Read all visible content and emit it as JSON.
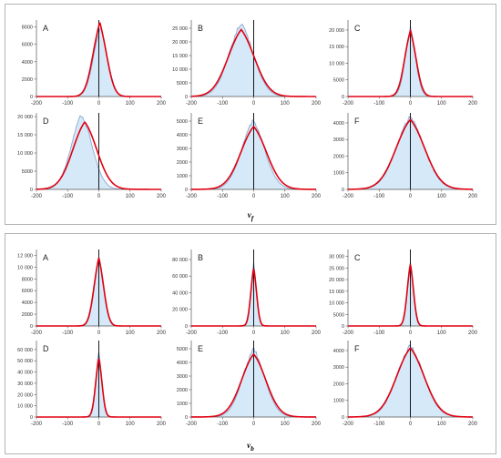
{
  "figure": {
    "colors": {
      "fit": "#e00010",
      "hist_fill": "#d5e9f8",
      "hist_line": "#8fa9d0",
      "axis": "#555555",
      "zero_line": "#000000"
    },
    "groups": [
      {
        "caption_main": "v",
        "caption_sub": "f"
      },
      {
        "caption_main": "v",
        "caption_sub": "b"
      }
    ]
  },
  "chart_data": [
    {
      "type": "area",
      "panel": "A",
      "group": "v_f",
      "xlim": [
        -200,
        200
      ],
      "ylim": [
        0,
        8800
      ],
      "xticks": [
        -200,
        -100,
        0,
        100,
        200
      ],
      "xtick_labels": [
        "-200",
        "-100",
        "0",
        "100",
        "200"
      ],
      "yticks": [
        0,
        2000,
        4000,
        6000,
        8000
      ],
      "ytick_labels": [
        "0",
        "2000",
        "4000",
        "6000",
        "8000"
      ],
      "histogram": {
        "peak": 8200,
        "center": 5,
        "sigma": 24,
        "tail_scale": 10
      },
      "fit": {
        "peak": 8600,
        "center": 3,
        "sigma": 24,
        "tail_scale": 10
      }
    },
    {
      "type": "area",
      "panel": "B",
      "group": "v_f",
      "xlim": [
        -200,
        200
      ],
      "ylim": [
        0,
        28000
      ],
      "xticks": [
        -200,
        -100,
        0,
        100,
        200
      ],
      "xtick_labels": [
        "-200",
        "-100",
        "0",
        "100",
        "200"
      ],
      "yticks": [
        0,
        5000,
        10000,
        15000,
        20000,
        25000
      ],
      "ytick_labels": [
        "0",
        "5000",
        "10 000",
        "15 000",
        "20 000",
        "25 000"
      ],
      "histogram": {
        "peak": 27000,
        "center": -40,
        "sigma": 42,
        "tail_scale": 28
      },
      "fit": {
        "peak": 24500,
        "center": -40,
        "sigma": 46,
        "tail_scale": 30
      }
    },
    {
      "type": "area",
      "panel": "C",
      "group": "v_f",
      "xlim": [
        -200,
        200
      ],
      "ylim": [
        0,
        23000
      ],
      "xticks": [
        -200,
        -100,
        0,
        100,
        200
      ],
      "xtick_labels": [
        "-200",
        "-100",
        "0",
        "100",
        "200"
      ],
      "yticks": [
        0,
        5000,
        10000,
        15000,
        20000
      ],
      "ytick_labels": [
        "0",
        "5000",
        "10 000",
        "15 000",
        "20 000"
      ],
      "histogram": {
        "peak": 20500,
        "center": 0,
        "sigma": 18,
        "tail_scale": 10
      },
      "fit": {
        "peak": 19800,
        "center": 0,
        "sigma": 20,
        "tail_scale": 11
      }
    },
    {
      "type": "area",
      "panel": "D",
      "group": "v_f",
      "xlim": [
        -200,
        200
      ],
      "ylim": [
        0,
        21000
      ],
      "xticks": [
        -200,
        -100,
        0,
        100,
        200
      ],
      "xtick_labels": [
        "-200",
        "-100",
        "0",
        "100",
        "200"
      ],
      "yticks": [
        0,
        5000,
        10000,
        15000,
        20000
      ],
      "ytick_labels": [
        "0",
        "5000",
        "10 000",
        "15 000",
        "20 000"
      ],
      "histogram": {
        "peak": 20500,
        "center": -55,
        "sigma": 36,
        "tail_scale": 25
      },
      "fit": {
        "peak": 18500,
        "center": -45,
        "sigma": 42,
        "tail_scale": 30
      }
    },
    {
      "type": "area",
      "panel": "E",
      "group": "v_f",
      "xlim": [
        -200,
        200
      ],
      "ylim": [
        0,
        5600
      ],
      "xticks": [
        -200,
        -100,
        0,
        100,
        200
      ],
      "xtick_labels": [
        "-200",
        "-100",
        "0",
        "100",
        "200"
      ],
      "yticks": [
        0,
        1000,
        2000,
        3000,
        4000,
        5000
      ],
      "ytick_labels": [
        "0",
        "1000",
        "2000",
        "3000",
        "4000",
        "5000"
      ],
      "histogram": {
        "peak": 5000,
        "center": -2,
        "sigma": 40,
        "tail_scale": 30
      },
      "fit": {
        "peak": 4600,
        "center": 0,
        "sigma": 45,
        "tail_scale": 32
      }
    },
    {
      "type": "area",
      "panel": "F",
      "group": "v_f",
      "xlim": [
        -200,
        200
      ],
      "ylim": [
        0,
        4600
      ],
      "xticks": [
        -200,
        -100,
        0,
        100,
        200
      ],
      "xtick_labels": [
        "-200",
        "-100",
        "0",
        "100",
        "200"
      ],
      "yticks": [
        0,
        1000,
        2000,
        3000,
        4000
      ],
      "ytick_labels": [
        "0",
        "1000",
        "2000",
        "3000",
        "4000"
      ],
      "histogram": {
        "peak": 4350,
        "center": 0,
        "sigma": 48,
        "tail_scale": 35
      },
      "fit": {
        "peak": 4200,
        "center": 0,
        "sigma": 50,
        "tail_scale": 36
      }
    },
    {
      "type": "area",
      "panel": "A",
      "group": "v_b",
      "xlim": [
        -200,
        200
      ],
      "ylim": [
        0,
        13000
      ],
      "xticks": [
        -200,
        -100,
        0,
        100,
        200
      ],
      "xtick_labels": [
        "-200",
        "-100",
        "0",
        "100",
        "200"
      ],
      "yticks": [
        0,
        2000,
        4000,
        6000,
        8000,
        10000,
        12000
      ],
      "ytick_labels": [
        "0",
        "2000",
        "4000",
        "6000",
        "8000",
        "10 000",
        "12 000"
      ],
      "histogram": {
        "peak": 11500,
        "center": 0,
        "sigma": 16,
        "tail_scale": 9
      },
      "fit": {
        "peak": 11600,
        "center": 0,
        "sigma": 17,
        "tail_scale": 9
      }
    },
    {
      "type": "area",
      "panel": "B",
      "group": "v_b",
      "xlim": [
        -200,
        200
      ],
      "ylim": [
        0,
        92000
      ],
      "xticks": [
        -200,
        -100,
        0,
        100,
        200
      ],
      "xtick_labels": [
        "-200",
        "-100",
        "0",
        "100",
        "200"
      ],
      "yticks": [
        0,
        20000,
        40000,
        60000,
        80000
      ],
      "ytick_labels": [
        "0",
        "20 000",
        "40 000",
        "60 000",
        "80 000"
      ],
      "histogram": {
        "peak": 75000,
        "center": 0,
        "sigma": 9,
        "tail_scale": 6
      },
      "fit": {
        "peak": 69000,
        "center": 0,
        "sigma": 10,
        "tail_scale": 7
      }
    },
    {
      "type": "area",
      "panel": "C",
      "group": "v_b",
      "xlim": [
        -200,
        200
      ],
      "ylim": [
        0,
        33000
      ],
      "xticks": [
        -200,
        -100,
        0,
        100,
        200
      ],
      "xtick_labels": [
        "-200",
        "-100",
        "0",
        "100",
        "200"
      ],
      "yticks": [
        0,
        5000,
        10000,
        15000,
        20000,
        25000,
        30000
      ],
      "ytick_labels": [
        "0",
        "5000",
        "10 000",
        "15 000",
        "20 000",
        "25 000",
        "30 000"
      ],
      "histogram": {
        "peak": 28000,
        "center": 0,
        "sigma": 10,
        "tail_scale": 7
      },
      "fit": {
        "peak": 26500,
        "center": 0,
        "sigma": 11,
        "tail_scale": 7
      }
    },
    {
      "type": "area",
      "panel": "D",
      "group": "v_b",
      "xlim": [
        -200,
        200
      ],
      "ylim": [
        0,
        68000
      ],
      "xticks": [
        -200,
        -100,
        0,
        100,
        200
      ],
      "xtick_labels": [
        "-200",
        "-100",
        "0",
        "100",
        "200"
      ],
      "yticks": [
        0,
        10000,
        20000,
        30000,
        40000,
        50000,
        60000
      ],
      "ytick_labels": [
        "0",
        "10 000",
        "20 000",
        "30 000",
        "40 000",
        "50 000",
        "60 000"
      ],
      "histogram": {
        "peak": 58000,
        "center": 0,
        "sigma": 10,
        "tail_scale": 7
      },
      "fit": {
        "peak": 52000,
        "center": 0,
        "sigma": 11,
        "tail_scale": 8
      }
    },
    {
      "type": "area",
      "panel": "E",
      "group": "v_b",
      "xlim": [
        -200,
        200
      ],
      "ylim": [
        0,
        5600
      ],
      "xticks": [
        -200,
        -100,
        0,
        100,
        200
      ],
      "xtick_labels": [
        "-200",
        "-100",
        "0",
        "100",
        "200"
      ],
      "yticks": [
        0,
        1000,
        2000,
        3000,
        4000,
        5000
      ],
      "ytick_labels": [
        "0",
        "1000",
        "2000",
        "3000",
        "4000",
        "5000"
      ],
      "histogram": {
        "peak": 4950,
        "center": 0,
        "sigma": 38,
        "tail_scale": 30
      },
      "fit": {
        "peak": 4600,
        "center": 0,
        "sigma": 42,
        "tail_scale": 32
      }
    },
    {
      "type": "area",
      "panel": "F",
      "group": "v_b",
      "xlim": [
        -200,
        200
      ],
      "ylim": [
        0,
        4600
      ],
      "xticks": [
        -200,
        -100,
        0,
        100,
        200
      ],
      "xtick_labels": [
        "-200",
        "-100",
        "0",
        "100",
        "200"
      ],
      "yticks": [
        0,
        1000,
        2000,
        3000,
        4000
      ],
      "ytick_labels": [
        "0",
        "1000",
        "2000",
        "3000",
        "4000"
      ],
      "histogram": {
        "peak": 4300,
        "center": 0,
        "sigma": 46,
        "tail_scale": 34
      },
      "fit": {
        "peak": 4150,
        "center": 0,
        "sigma": 48,
        "tail_scale": 35
      }
    }
  ]
}
